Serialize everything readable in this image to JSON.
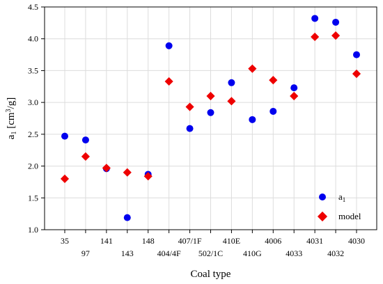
{
  "chart_data": {
    "type": "scatter",
    "xlabel": "Coal type",
    "ylabel": "a",
    "ylabel_sub": "1",
    "ylabel_unit_open": " [cm",
    "ylabel_unit_sup": "3",
    "ylabel_unit_close": "/g]",
    "ylim": [
      1.0,
      4.5
    ],
    "yticks": [
      "1.0",
      "1.5",
      "2.0",
      "2.5",
      "3.0",
      "3.5",
      "4.0",
      "4.5"
    ],
    "grid": true,
    "legend_position": "bottom-right",
    "categories": [
      "35",
      "97",
      "141",
      "143",
      "148",
      "404/4F",
      "407/1F",
      "502/1C",
      "410E",
      "410G",
      "4006",
      "4033",
      "4031",
      "4032",
      "4030"
    ],
    "series": [
      {
        "name": "a",
        "name_sub": "1",
        "marker": "circle",
        "color": "#0000ee",
        "values": [
          2.47,
          2.41,
          1.96,
          1.19,
          1.87,
          3.89,
          2.59,
          2.84,
          3.31,
          2.73,
          2.86,
          3.23,
          4.32,
          4.26,
          3.75
        ]
      },
      {
        "name": "model",
        "marker": "diamond",
        "color": "#ee0000",
        "values": [
          1.8,
          2.15,
          1.97,
          1.9,
          1.84,
          3.33,
          2.93,
          3.1,
          3.02,
          3.53,
          3.35,
          3.1,
          4.03,
          4.05,
          3.45
        ]
      }
    ]
  }
}
